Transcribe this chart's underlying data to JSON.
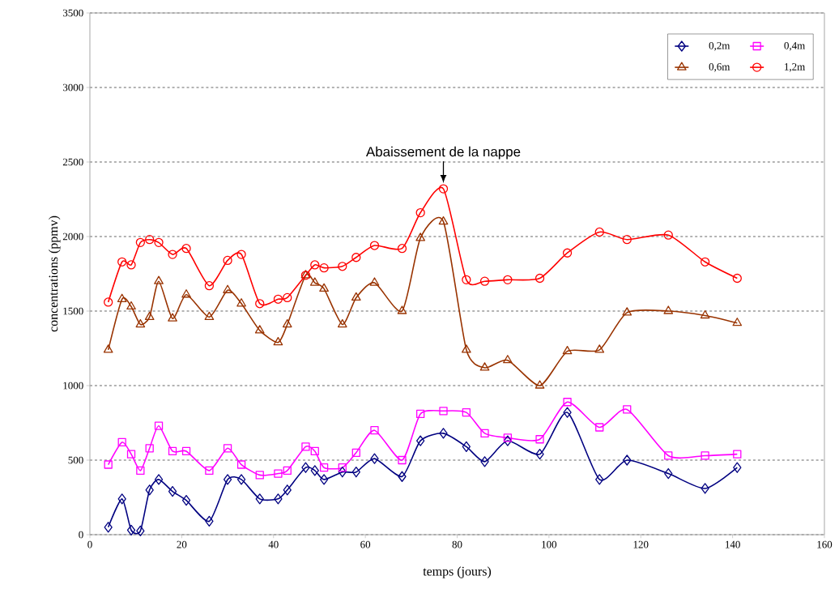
{
  "chart_data": {
    "type": "line",
    "xlabel": "temps (jours)",
    "ylabel": "concentrations (ppmv)",
    "x": [
      4,
      7,
      9,
      11,
      13,
      15,
      18,
      21,
      26,
      30,
      33,
      37,
      41,
      43,
      47,
      49,
      51,
      55,
      58,
      62,
      68,
      72,
      77,
      82,
      86,
      91,
      98,
      104,
      111,
      117,
      126,
      134,
      141
    ],
    "series": [
      {
        "name": "0,2m",
        "color": "#000080",
        "marker": "diamond",
        "values": [
          50,
          240,
          30,
          25,
          300,
          370,
          290,
          230,
          90,
          370,
          370,
          240,
          240,
          300,
          450,
          430,
          370,
          420,
          420,
          510,
          390,
          630,
          680,
          590,
          490,
          630,
          540,
          820,
          370,
          500,
          410,
          310,
          450
        ]
      },
      {
        "name": "0,4m",
        "color": "#ff00ff",
        "marker": "square",
        "values": [
          470,
          620,
          540,
          430,
          580,
          730,
          560,
          560,
          430,
          580,
          470,
          400,
          410,
          430,
          590,
          560,
          450,
          450,
          550,
          700,
          500,
          810,
          830,
          820,
          680,
          650,
          640,
          890,
          720,
          840,
          530,
          530,
          540
        ]
      },
      {
        "name": "0,6m",
        "color": "#993300",
        "marker": "triangle",
        "values": [
          1240,
          1580,
          1530,
          1410,
          1460,
          1700,
          1450,
          1610,
          1460,
          1640,
          1550,
          1370,
          1290,
          1410,
          1740,
          1690,
          1650,
          1410,
          1590,
          1690,
          1500,
          1990,
          2100,
          1240,
          1120,
          1170,
          1000,
          1230,
          1240,
          1490,
          1500,
          1470,
          1420
        ]
      },
      {
        "name": "1,2m",
        "color": "#ff0000",
        "marker": "circle",
        "values": [
          1560,
          1830,
          1810,
          1960,
          1980,
          1960,
          1880,
          1920,
          1670,
          1840,
          1880,
          1550,
          1580,
          1590,
          1740,
          1810,
          1790,
          1800,
          1860,
          1940,
          1920,
          2160,
          2320,
          1710,
          1700,
          1710,
          1720,
          1890,
          2030,
          1980,
          2010,
          1830,
          1720
        ]
      }
    ],
    "annotations": [
      {
        "text": "Abaissement de la nappe",
        "x": 77,
        "y": 2320
      }
    ],
    "xlim": [
      0,
      160
    ],
    "xticks": [
      0,
      20,
      40,
      60,
      80,
      100,
      120,
      140,
      160
    ],
    "ylim": [
      0,
      3500
    ],
    "yticks": [
      0,
      500,
      1000,
      1500,
      2000,
      2500,
      3000,
      3500
    ],
    "grid": "y",
    "legend": "top right",
    "line_style": "solid"
  }
}
